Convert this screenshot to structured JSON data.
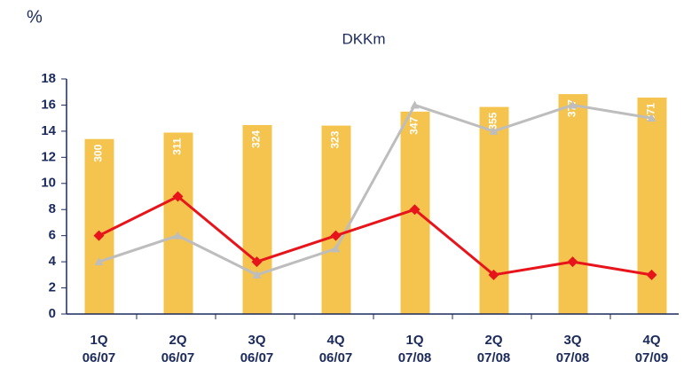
{
  "chart_data": {
    "type": "bar-line",
    "ylabel": "%",
    "y2label": "DKKm",
    "categories": [
      [
        "1Q",
        "06/07"
      ],
      [
        "2Q",
        "06/07"
      ],
      [
        "3Q",
        "06/07"
      ],
      [
        "4Q",
        "06/07"
      ],
      [
        "1Q",
        "07/08"
      ],
      [
        "2Q",
        "07/08"
      ],
      [
        "3Q",
        "07/08"
      ],
      [
        "4Q",
        "07/09"
      ]
    ],
    "ylim": [
      0,
      18
    ],
    "yticks": [
      0,
      2,
      4,
      6,
      8,
      10,
      12,
      14,
      16,
      18
    ],
    "y2lim": [
      0,
      403
    ],
    "series": [
      {
        "type": "bar",
        "axis": "y2",
        "color": "#f5c44f",
        "values": [
          300,
          311,
          324,
          323,
          347,
          355,
          377,
          371
        ]
      },
      {
        "type": "line",
        "color": "#bdbdbd",
        "values": [
          4,
          6,
          3,
          5,
          16,
          14,
          16,
          15
        ]
      },
      {
        "type": "line",
        "color": "#e8141b",
        "values": [
          6,
          9,
          4,
          6,
          8,
          3,
          4,
          3
        ]
      }
    ]
  }
}
